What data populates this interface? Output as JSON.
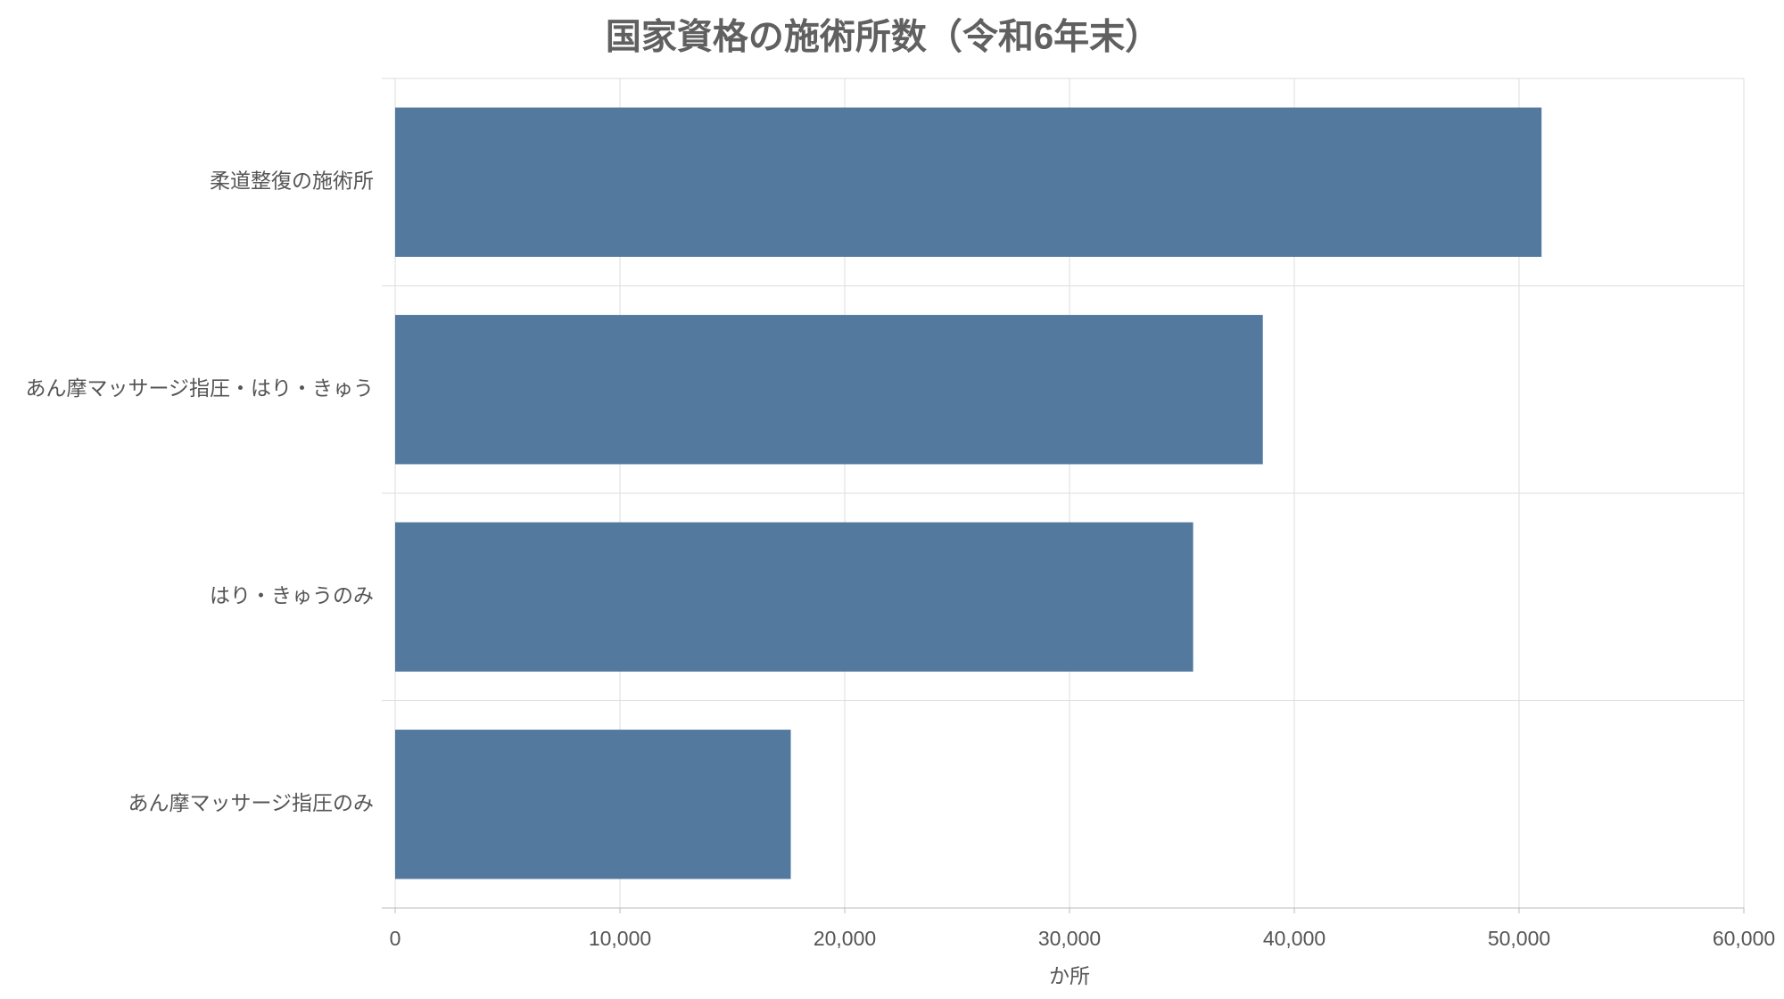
{
  "chart_data": {
    "type": "barh",
    "title": "国家資格の施術所数（令和6年末）",
    "categories": [
      "柔道整復の施術所",
      "あん摩マッサージ指圧・はり・きゅう",
      "はり・きゅうのみ",
      "あん摩マッサージ指圧のみ"
    ],
    "values": [
      51000,
      38600,
      35500,
      17600
    ],
    "color": "#54799f",
    "xlabel": "か所",
    "xlim": [
      0,
      60000
    ],
    "xticks": [
      0,
      {
        "value": 10000,
        "label": "10,000"
      },
      {
        "value": 20000,
        "label": "20,000"
      },
      {
        "value": 30000,
        "label": "30,000"
      },
      {
        "value": 40000,
        "label": "40,000"
      },
      {
        "value": 50000,
        "label": "50,000"
      },
      {
        "value": 60000,
        "label": "60,000"
      }
    ],
    "grid": true
  }
}
